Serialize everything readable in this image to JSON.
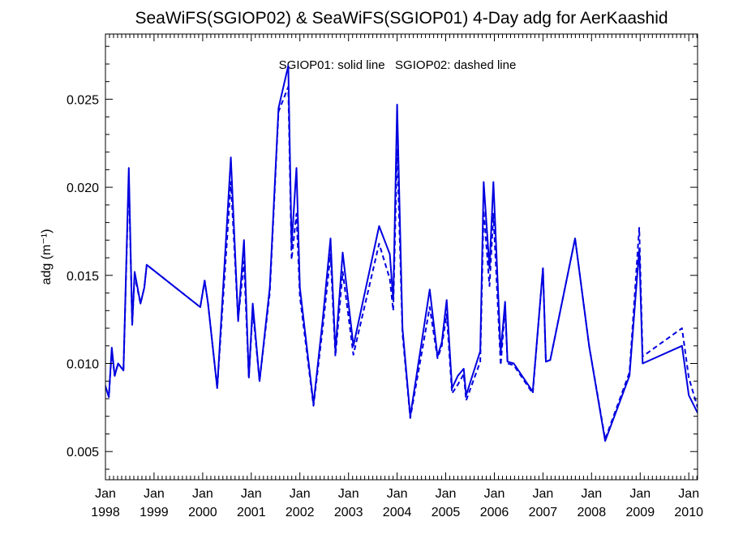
{
  "chart_data": {
    "type": "line",
    "title": "SeaWiFS(SGIOP02) & SeaWiFS(SGIOP01) 4-Day adg for AerKaashid",
    "annotation": "SGIOP01: solid line   SGIOP02: dashed line",
    "ylabel": "adg (m⁻¹)",
    "xlim": [
      1998.0,
      2010.18
    ],
    "ylim": [
      0.0034,
      0.0287
    ],
    "yticks": [
      0.005,
      0.01,
      0.015,
      0.02,
      0.025
    ],
    "ytick_labels": [
      "0.005",
      "0.010",
      "0.015",
      "0.020",
      "0.025"
    ],
    "xticks": [
      1998,
      1999,
      2000,
      2001,
      2002,
      2003,
      2004,
      2005,
      2006,
      2007,
      2008,
      2009,
      2010
    ],
    "xtick_labels": [
      [
        "Jan",
        "1998"
      ],
      [
        "Jan",
        "1999"
      ],
      [
        "Jan",
        "2000"
      ],
      [
        "Jan",
        "2001"
      ],
      [
        "Jan",
        "2002"
      ],
      [
        "Jan",
        "2003"
      ],
      [
        "Jan",
        "2004"
      ],
      [
        "Jan",
        "2005"
      ],
      [
        "Jan",
        "2006"
      ],
      [
        "Jan",
        "2007"
      ],
      [
        "Jan",
        "2008"
      ],
      [
        "Jan",
        "2009"
      ],
      [
        "Jan",
        "2010"
      ]
    ],
    "color": "#0000e0",
    "series": [
      {
        "name": "SGIOP01",
        "style": "solid",
        "points": [
          [
            1997.95,
            0.0092
          ],
          [
            1998.0,
            0.0087
          ],
          [
            1998.07,
            0.0081
          ],
          [
            1998.13,
            0.0109
          ],
          [
            1998.19,
            0.0093
          ],
          [
            1998.26,
            0.01
          ],
          [
            1998.37,
            0.0096
          ],
          [
            1998.48,
            0.0211
          ],
          [
            1998.55,
            0.0122
          ],
          [
            1998.6,
            0.0152
          ],
          [
            1998.72,
            0.0134
          ],
          [
            1998.8,
            0.0143
          ],
          [
            1998.85,
            0.0156
          ],
          [
            1999.95,
            0.0132
          ],
          [
            2000.04,
            0.0147
          ],
          [
            2000.11,
            0.0134
          ],
          [
            2000.3,
            0.0086
          ],
          [
            2000.58,
            0.0217
          ],
          [
            2000.73,
            0.0124
          ],
          [
            2000.85,
            0.017
          ],
          [
            2000.95,
            0.0092
          ],
          [
            2001.03,
            0.0134
          ],
          [
            2001.17,
            0.009
          ],
          [
            2001.38,
            0.0143
          ],
          [
            2001.56,
            0.0245
          ],
          [
            2001.76,
            0.0269
          ],
          [
            2001.83,
            0.0167
          ],
          [
            2001.93,
            0.0211
          ],
          [
            2002.0,
            0.0143
          ],
          [
            2002.28,
            0.0077
          ],
          [
            2002.47,
            0.0125
          ],
          [
            2002.63,
            0.0171
          ],
          [
            2002.73,
            0.0107
          ],
          [
            2002.88,
            0.0163
          ],
          [
            2003.1,
            0.011
          ],
          [
            2003.63,
            0.0178
          ],
          [
            2003.85,
            0.0162
          ],
          [
            2003.92,
            0.0136
          ],
          [
            2004.0,
            0.0247
          ],
          [
            2004.11,
            0.012
          ],
          [
            2004.27,
            0.007
          ],
          [
            2004.67,
            0.0142
          ],
          [
            2004.83,
            0.0104
          ],
          [
            2004.92,
            0.0112
          ],
          [
            2005.02,
            0.0136
          ],
          [
            2005.13,
            0.0086
          ],
          [
            2005.25,
            0.0093
          ],
          [
            2005.37,
            0.0097
          ],
          [
            2005.42,
            0.0082
          ],
          [
            2005.71,
            0.0107
          ],
          [
            2005.78,
            0.0203
          ],
          [
            2005.9,
            0.0154
          ],
          [
            2005.98,
            0.0203
          ],
          [
            2006.13,
            0.0106
          ],
          [
            2006.22,
            0.0135
          ],
          [
            2006.27,
            0.0101
          ],
          [
            2006.4,
            0.01
          ],
          [
            2006.79,
            0.0084
          ],
          [
            2007.0,
            0.0154
          ],
          [
            2007.06,
            0.0101
          ],
          [
            2007.15,
            0.0102
          ],
          [
            2007.66,
            0.0171
          ],
          [
            2007.95,
            0.011
          ],
          [
            2008.28,
            0.0056
          ],
          [
            2008.78,
            0.0093
          ],
          [
            2008.98,
            0.0165
          ],
          [
            2009.05,
            0.01
          ],
          [
            2009.86,
            0.011
          ],
          [
            2010.0,
            0.0082
          ],
          [
            2010.18,
            0.0072
          ]
        ]
      },
      {
        "name": "SGIOP02",
        "style": "dashed",
        "points": [
          [
            1997.95,
            0.0092
          ],
          [
            1998.0,
            0.0087
          ],
          [
            1998.07,
            0.0081
          ],
          [
            1998.13,
            0.0107
          ],
          [
            1998.19,
            0.0093
          ],
          [
            1998.26,
            0.01
          ],
          [
            1998.37,
            0.0096
          ],
          [
            1998.48,
            0.0206
          ],
          [
            1998.55,
            0.0122
          ],
          [
            1998.6,
            0.015
          ],
          [
            1998.72,
            0.0134
          ],
          [
            1998.8,
            0.0143
          ],
          [
            1998.85,
            0.0156
          ],
          [
            1999.95,
            0.0132
          ],
          [
            2000.04,
            0.0147
          ],
          [
            2000.11,
            0.0134
          ],
          [
            2000.3,
            0.0086
          ],
          [
            2000.58,
            0.0203
          ],
          [
            2000.73,
            0.0125
          ],
          [
            2000.85,
            0.0158
          ],
          [
            2000.95,
            0.0092
          ],
          [
            2001.03,
            0.013
          ],
          [
            2001.17,
            0.009
          ],
          [
            2001.38,
            0.014
          ],
          [
            2001.56,
            0.0243
          ],
          [
            2001.76,
            0.0257
          ],
          [
            2001.83,
            0.0159
          ],
          [
            2001.93,
            0.0185
          ],
          [
            2002.0,
            0.0138
          ],
          [
            2002.28,
            0.0076
          ],
          [
            2002.47,
            0.012
          ],
          [
            2002.63,
            0.0162
          ],
          [
            2002.73,
            0.0104
          ],
          [
            2002.88,
            0.0152
          ],
          [
            2003.1,
            0.0105
          ],
          [
            2003.63,
            0.0168
          ],
          [
            2003.85,
            0.0148
          ],
          [
            2003.92,
            0.013
          ],
          [
            2004.0,
            0.0222
          ],
          [
            2004.11,
            0.0117
          ],
          [
            2004.27,
            0.0069
          ],
          [
            2004.67,
            0.0132
          ],
          [
            2004.83,
            0.0103
          ],
          [
            2004.92,
            0.011
          ],
          [
            2005.02,
            0.0128
          ],
          [
            2005.13,
            0.0083
          ],
          [
            2005.25,
            0.0088
          ],
          [
            2005.37,
            0.0094
          ],
          [
            2005.42,
            0.0079
          ],
          [
            2005.71,
            0.0101
          ],
          [
            2005.78,
            0.0187
          ],
          [
            2005.9,
            0.0144
          ],
          [
            2005.98,
            0.0185
          ],
          [
            2006.13,
            0.0099
          ],
          [
            2006.22,
            0.0132
          ],
          [
            2006.27,
            0.01
          ],
          [
            2006.4,
            0.0099
          ],
          [
            2006.79,
            0.0083
          ],
          [
            2007.0,
            0.0154
          ],
          [
            2007.06,
            0.0101
          ],
          [
            2007.15,
            0.0102
          ],
          [
            2007.66,
            0.0171
          ],
          [
            2007.95,
            0.011
          ],
          [
            2008.28,
            0.0057
          ],
          [
            2008.78,
            0.0095
          ],
          [
            2008.98,
            0.0177
          ],
          [
            2009.05,
            0.0104
          ],
          [
            2009.86,
            0.012
          ],
          [
            2010.0,
            0.0092
          ],
          [
            2010.18,
            0.0075
          ]
        ]
      }
    ]
  }
}
